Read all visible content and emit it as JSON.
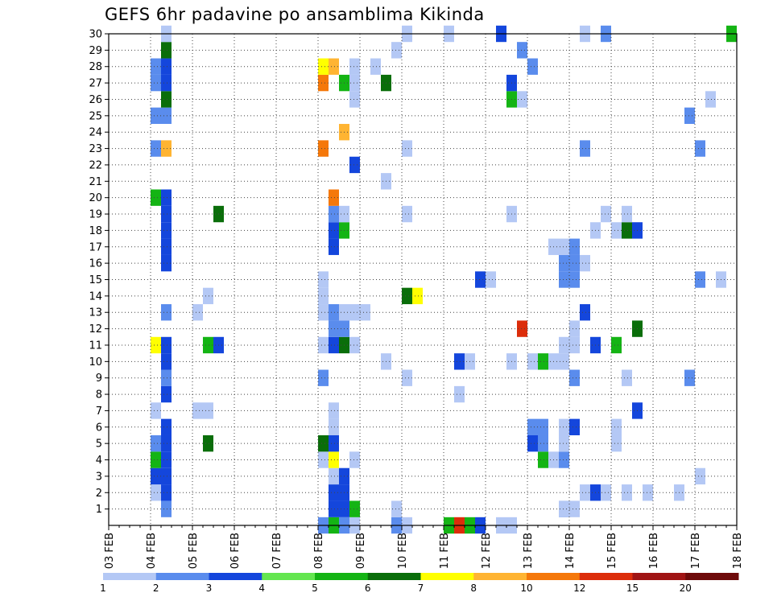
{
  "chart_data": {
    "type": "heatmap",
    "title": "GEFS 6hr padavine po ansamblima Kikinda",
    "x_tick_labels": [
      "03 FEB",
      "04 FEB",
      "05 FEB",
      "06 FEB",
      "07 FEB",
      "08 FEB",
      "09 FEB",
      "10 FEB",
      "11 FEB",
      "12 FEB",
      "13 FEB",
      "14 FEB",
      "15 FEB",
      "16 FEB",
      "17 FEB",
      "18 FEB"
    ],
    "y_tick_labels": [
      "1",
      "2",
      "3",
      "4",
      "5",
      "6",
      "7",
      "8",
      "9",
      "10",
      "11",
      "12",
      "13",
      "14",
      "15",
      "16",
      "17",
      "18",
      "19",
      "20",
      "21",
      "22",
      "23",
      "24",
      "25",
      "26",
      "27",
      "28",
      "29",
      "30"
    ],
    "steps_per_day": 4,
    "n_steps": 60,
    "member_range": [
      0,
      30
    ],
    "grid": true,
    "legend": {
      "placement": "bottom",
      "labels": [
        "1",
        "2",
        "3",
        "4",
        "5",
        "6",
        "7",
        "8",
        "10",
        "12",
        "15",
        "20"
      ],
      "colors": [
        "#b4c8f5",
        "#5a8ced",
        "#1446dc",
        "#64e650",
        "#14b414",
        "#0a6e0a",
        "#ffff00",
        "#ffb432",
        "#f5780a",
        "#dc2d0a",
        "#a01414",
        "#6e0a0a"
      ]
    },
    "cells": [
      [
        5,
        1,
        1
      ],
      [
        5,
        2,
        2
      ],
      [
        5,
        3,
        2
      ],
      [
        5,
        4,
        2
      ],
      [
        5,
        5,
        2
      ],
      [
        5,
        6,
        2
      ],
      [
        5,
        8,
        2
      ],
      [
        5,
        9,
        1
      ],
      [
        5,
        10,
        2
      ],
      [
        5,
        11,
        2
      ],
      [
        5,
        13,
        1
      ],
      [
        5,
        16,
        2
      ],
      [
        5,
        17,
        2
      ],
      [
        5,
        18,
        2
      ],
      [
        5,
        19,
        2
      ],
      [
        5,
        20,
        2
      ],
      [
        5,
        23,
        7
      ],
      [
        5,
        25,
        1
      ],
      [
        5,
        26,
        5
      ],
      [
        5,
        27,
        2
      ],
      [
        5,
        28,
        2
      ],
      [
        5,
        29,
        5
      ],
      [
        5,
        30,
        0
      ],
      [
        4,
        2,
        0
      ],
      [
        4,
        3,
        2
      ],
      [
        4,
        4,
        4
      ],
      [
        4,
        5,
        1
      ],
      [
        4,
        7,
        0
      ],
      [
        4,
        11,
        6
      ],
      [
        4,
        20,
        4
      ],
      [
        4,
        23,
        1
      ],
      [
        4,
        25,
        1
      ],
      [
        4,
        27,
        1
      ],
      [
        4,
        28,
        1
      ],
      [
        9,
        5,
        5
      ],
      [
        8,
        7,
        0
      ],
      [
        9,
        7,
        0
      ],
      [
        9,
        11,
        4
      ],
      [
        10,
        11,
        2
      ],
      [
        8,
        13,
        0
      ],
      [
        9,
        14,
        0
      ],
      [
        10,
        19,
        5
      ],
      [
        20,
        0,
        1
      ],
      [
        21,
        0,
        4
      ],
      [
        22,
        0,
        1
      ],
      [
        23,
        0,
        0
      ],
      [
        20,
        4,
        0
      ],
      [
        20,
        5,
        5
      ],
      [
        20,
        9,
        1
      ],
      [
        20,
        11,
        0
      ],
      [
        20,
        13,
        0
      ],
      [
        20,
        14,
        0
      ],
      [
        20,
        15,
        0
      ],
      [
        20,
        23,
        8
      ],
      [
        20,
        27,
        8
      ],
      [
        20,
        28,
        6
      ],
      [
        21,
        1,
        2
      ],
      [
        21,
        2,
        2
      ],
      [
        21,
        3,
        0
      ],
      [
        21,
        4,
        6
      ],
      [
        21,
        5,
        2
      ],
      [
        21,
        6,
        0
      ],
      [
        21,
        7,
        0
      ],
      [
        21,
        11,
        2
      ],
      [
        21,
        12,
        1
      ],
      [
        21,
        13,
        1
      ],
      [
        21,
        17,
        2
      ],
      [
        21,
        18,
        2
      ],
      [
        21,
        19,
        1
      ],
      [
        21,
        20,
        8
      ],
      [
        21,
        28,
        7
      ],
      [
        22,
        1,
        2
      ],
      [
        22,
        2,
        2
      ],
      [
        22,
        3,
        2
      ],
      [
        22,
        11,
        5
      ],
      [
        22,
        12,
        1
      ],
      [
        22,
        13,
        0
      ],
      [
        22,
        18,
        4
      ],
      [
        22,
        19,
        0
      ],
      [
        22,
        24,
        7
      ],
      [
        22,
        27,
        4
      ],
      [
        23,
        1,
        4
      ],
      [
        23,
        4,
        0
      ],
      [
        23,
        11,
        0
      ],
      [
        23,
        13,
        0
      ],
      [
        23,
        22,
        2
      ],
      [
        23,
        26,
        0
      ],
      [
        23,
        27,
        0
      ],
      [
        23,
        28,
        0
      ],
      [
        24,
        13,
        0
      ],
      [
        25,
        28,
        0
      ],
      [
        26,
        10,
        0
      ],
      [
        26,
        21,
        0
      ],
      [
        26,
        27,
        5
      ],
      [
        27,
        0,
        1
      ],
      [
        27,
        1,
        0
      ],
      [
        27,
        29,
        0
      ],
      [
        28,
        0,
        0
      ],
      [
        28,
        9,
        0
      ],
      [
        28,
        14,
        5
      ],
      [
        28,
        19,
        0
      ],
      [
        28,
        23,
        0
      ],
      [
        28,
        30,
        0
      ],
      [
        29,
        14,
        6
      ],
      [
        32,
        0,
        4
      ],
      [
        32,
        30,
        0
      ],
      [
        33,
        0,
        9
      ],
      [
        33,
        8,
        0
      ],
      [
        33,
        10,
        2
      ],
      [
        34,
        0,
        4
      ],
      [
        34,
        10,
        0
      ],
      [
        35,
        0,
        2
      ],
      [
        35,
        15,
        2
      ],
      [
        36,
        15,
        0
      ],
      [
        37,
        0,
        0
      ],
      [
        37,
        30,
        2
      ],
      [
        38,
        0,
        0
      ],
      [
        38,
        10,
        0
      ],
      [
        38,
        19,
        0
      ],
      [
        38,
        26,
        4
      ],
      [
        38,
        27,
        2
      ],
      [
        39,
        12,
        9
      ],
      [
        39,
        26,
        0
      ],
      [
        39,
        29,
        1
      ],
      [
        40,
        5,
        2
      ],
      [
        40,
        6,
        1
      ],
      [
        40,
        10,
        0
      ],
      [
        40,
        28,
        1
      ],
      [
        41,
        4,
        4
      ],
      [
        41,
        5,
        1
      ],
      [
        41,
        6,
        1
      ],
      [
        41,
        10,
        4
      ],
      [
        42,
        4,
        0
      ],
      [
        42,
        10,
        0
      ],
      [
        42,
        17,
        0
      ],
      [
        43,
        1,
        1
      ],
      [
        43,
        1,
        0
      ],
      [
        43,
        4,
        1
      ],
      [
        43,
        5,
        0
      ],
      [
        43,
        6,
        0
      ],
      [
        43,
        10,
        0
      ],
      [
        43,
        11,
        0
      ],
      [
        43,
        15,
        1
      ],
      [
        43,
        16,
        1
      ],
      [
        43,
        17,
        0
      ],
      [
        44,
        1,
        0
      ],
      [
        44,
        6,
        2
      ],
      [
        44,
        9,
        1
      ],
      [
        44,
        11,
        0
      ],
      [
        44,
        12,
        0
      ],
      [
        44,
        15,
        1
      ],
      [
        44,
        16,
        1
      ],
      [
        44,
        17,
        1
      ],
      [
        45,
        2,
        0
      ],
      [
        45,
        13,
        2
      ],
      [
        45,
        16,
        0
      ],
      [
        45,
        23,
        1
      ],
      [
        45,
        30,
        0
      ],
      [
        46,
        2,
        2
      ],
      [
        46,
        11,
        2
      ],
      [
        46,
        18,
        0
      ],
      [
        47,
        2,
        0
      ],
      [
        47,
        19,
        0
      ],
      [
        47,
        30,
        1
      ],
      [
        48,
        5,
        0
      ],
      [
        48,
        6,
        0
      ],
      [
        48,
        11,
        4
      ],
      [
        48,
        18,
        0
      ],
      [
        49,
        2,
        0
      ],
      [
        49,
        9,
        0
      ],
      [
        49,
        18,
        5
      ],
      [
        49,
        19,
        0
      ],
      [
        50,
        7,
        2
      ],
      [
        50,
        12,
        5
      ],
      [
        50,
        18,
        2
      ],
      [
        51,
        2,
        0
      ],
      [
        54,
        2,
        0
      ],
      [
        55,
        9,
        1
      ],
      [
        55,
        25,
        1
      ],
      [
        56,
        3,
        0
      ],
      [
        56,
        15,
        1
      ],
      [
        56,
        23,
        1
      ],
      [
        57,
        26,
        0
      ],
      [
        58,
        15,
        0
      ],
      [
        59,
        30,
        4
      ]
    ]
  }
}
